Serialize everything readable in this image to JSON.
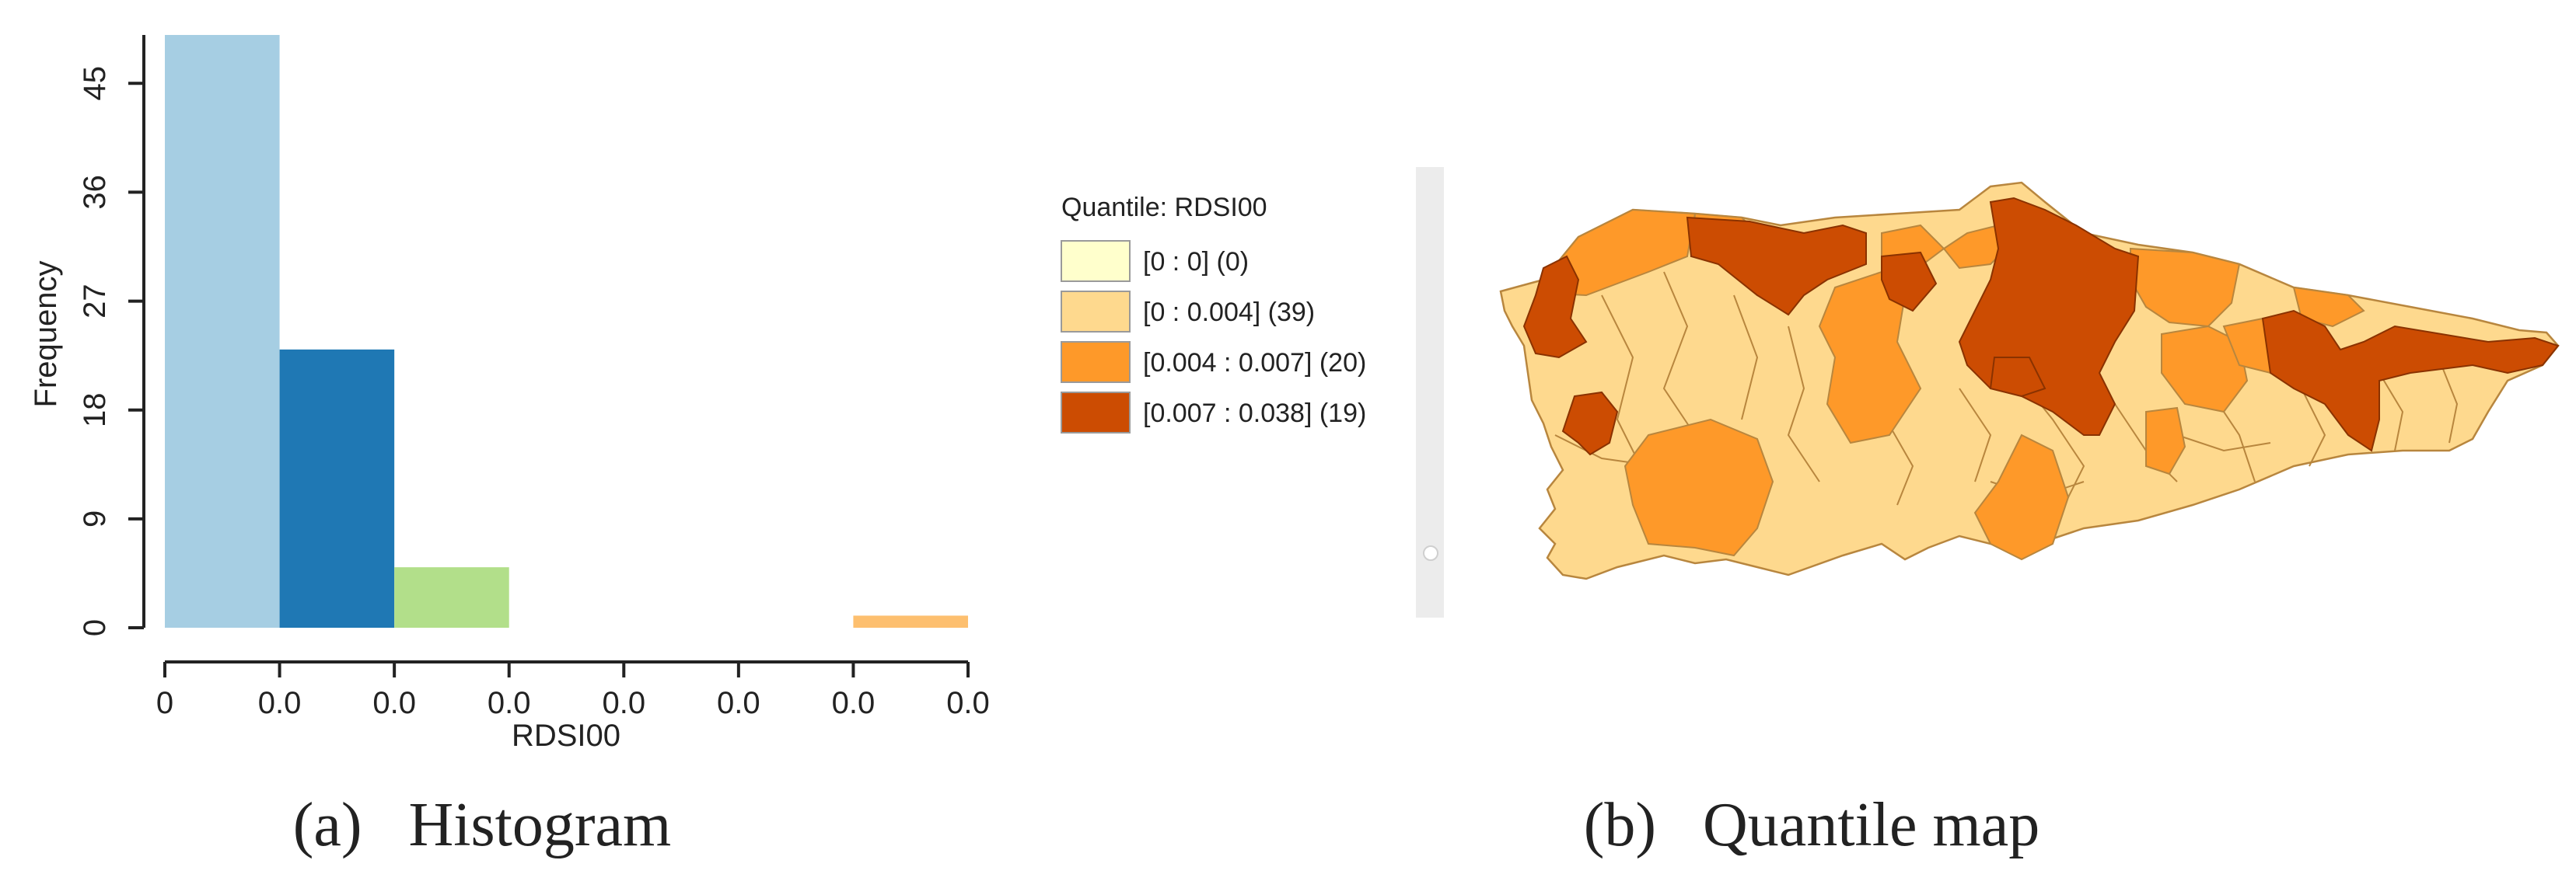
{
  "chart_data": [
    {
      "type": "bar",
      "xlabel": "RDSI00",
      "ylabel": "Frequency",
      "x_tick_labels": [
        "0",
        "0.0",
        "0.0",
        "0.0",
        "0.0",
        "0.0",
        "0.0",
        "0.0"
      ],
      "y_ticks": [
        0,
        9,
        18,
        27,
        36,
        45
      ],
      "ylim": [
        0,
        49
      ],
      "bins": 7,
      "values": [
        49,
        23,
        5,
        0,
        0,
        0,
        1
      ],
      "colors": [
        "#a6cee3",
        "#1f78b4",
        "#b2df8a",
        null,
        null,
        null,
        "#fdbf6f"
      ],
      "caption": "(a)   Histogram"
    },
    {
      "type": "map",
      "legend_title": "Quantile: RDSI00",
      "legend": [
        {
          "label": "[0 : 0] (0)",
          "color": "#ffffcc"
        },
        {
          "label": "[0 : 0.004] (39)",
          "color": "#fed98e"
        },
        {
          "label": "[0.004 : 0.007] (20)",
          "color": "#fe9929"
        },
        {
          "label": "[0.007 : 0.038] (19)",
          "color": "#cc4c02"
        }
      ],
      "caption": "(b)   Quantile map"
    }
  ]
}
